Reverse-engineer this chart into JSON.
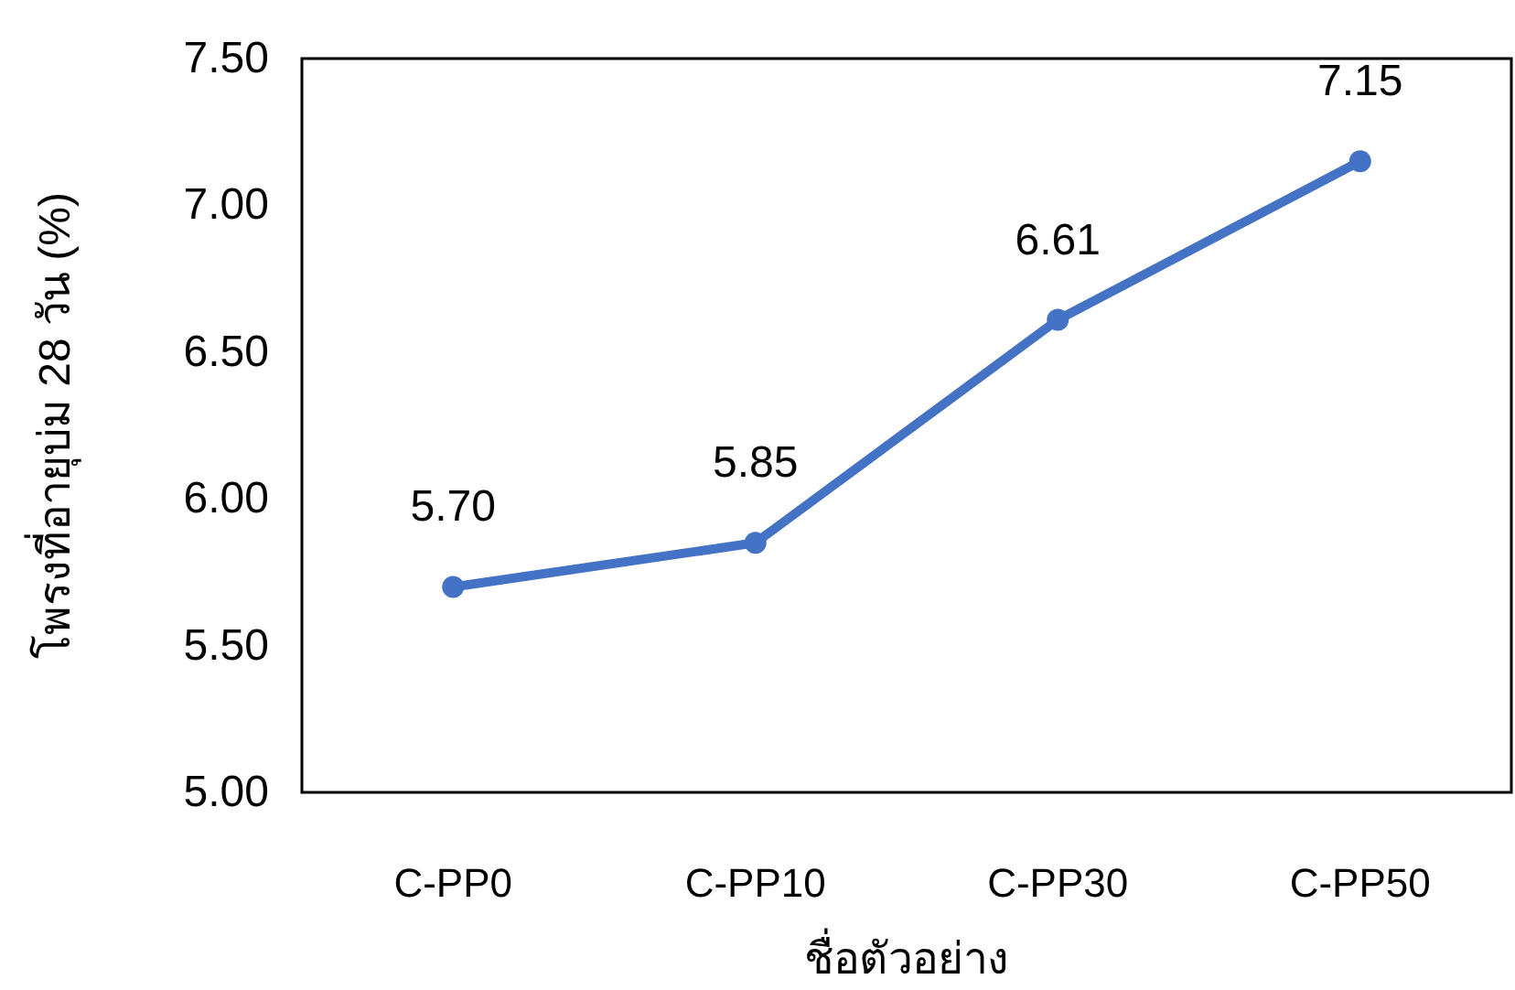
{
  "chart_data": {
    "type": "line",
    "xlabel": "ชื่อตัวอย่าง",
    "ylabel": "โพรงที่อายุบ่ม 28 วัน (%)",
    "categories": [
      "C-PP0",
      "C-PP10",
      "C-PP30",
      "C-PP50"
    ],
    "series": [
      {
        "color": "#4472c4",
        "values": [
          5.7,
          5.85,
          6.61,
          7.15
        ],
        "value_labels": [
          "5.70",
          "5.85",
          "6.61",
          "7.15"
        ]
      }
    ],
    "ylim": [
      5,
      7.5
    ],
    "yticks": [
      {
        "value": 5,
        "label": "5.00"
      },
      {
        "value": 5.5,
        "label": "5.50"
      },
      {
        "value": 6,
        "label": "6.00"
      },
      {
        "value": 6.5,
        "label": "6.50"
      },
      {
        "value": 7,
        "label": "7.00"
      },
      {
        "value": 7.5,
        "label": "7.50"
      }
    ],
    "marker": "circle",
    "line_style": "solid"
  }
}
